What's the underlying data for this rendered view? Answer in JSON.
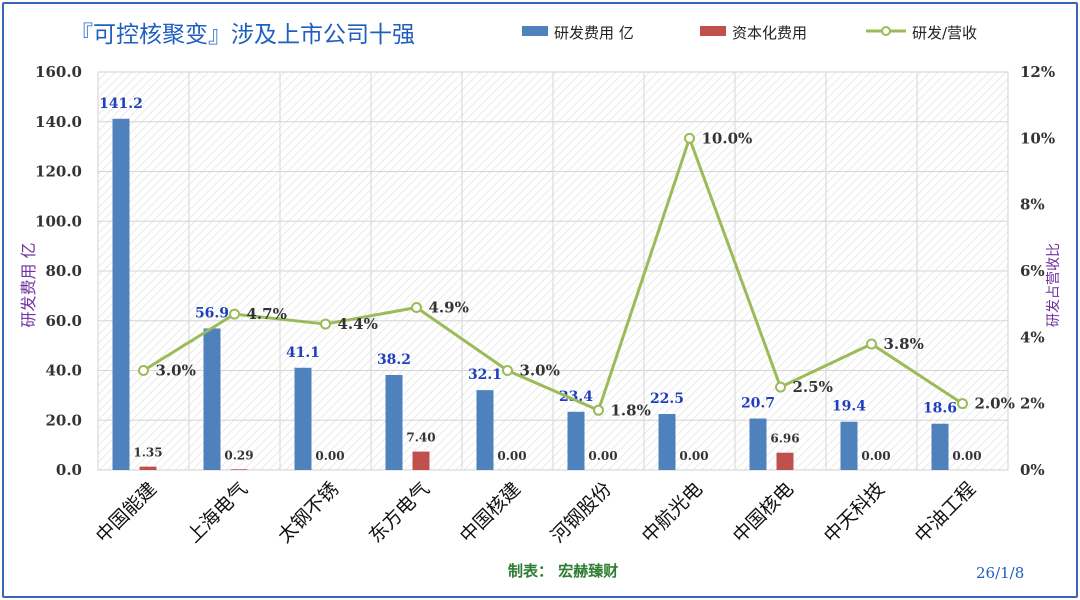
{
  "chart_data": {
    "type": "bar",
    "title": "『可控核聚变』涉及上市公司十强",
    "categories": [
      "中国能建",
      "上海电气",
      "太钢不锈",
      "东方电气",
      "中国核建",
      "河钢股份",
      "中航光电",
      "中国核电",
      "中天科技",
      "中油工程"
    ],
    "series": [
      {
        "name": "研发费用 亿",
        "kind": "bar",
        "axis": "left",
        "color": "#4f81bd",
        "values": [
          141.2,
          56.9,
          41.1,
          38.2,
          32.1,
          23.4,
          22.5,
          20.7,
          19.4,
          18.6
        ],
        "labels": [
          "141.2",
          "56.9",
          "41.1",
          "38.2",
          "32.1",
          "23.4",
          "22.5",
          "20.7",
          "19.4",
          "18.6"
        ]
      },
      {
        "name": "资本化费用",
        "kind": "bar",
        "axis": "left",
        "color": "#c0504d",
        "values": [
          1.35,
          0.29,
          0.0,
          7.4,
          0.0,
          0.0,
          0.0,
          6.96,
          0.0,
          0.0
        ],
        "labels": [
          "1.35",
          "0.29",
          "0.00",
          "7.40",
          "0.00",
          "0.00",
          "0.00",
          "6.96",
          "0.00",
          "0.00"
        ]
      },
      {
        "name": "研发/营收",
        "kind": "line",
        "axis": "right",
        "color": "#9bbb59",
        "values": [
          3.0,
          4.7,
          4.4,
          4.9,
          3.0,
          1.8,
          10.0,
          2.5,
          3.8,
          2.0
        ],
        "labels": [
          "3.0%",
          "4.7%",
          "4.4%",
          "4.9%",
          "3.0%",
          "1.8%",
          "10.0%",
          "2.5%",
          "3.8%",
          "2.0%"
        ]
      }
    ],
    "ylabel": "研发费用 亿",
    "y2label": "研发占营收比",
    "ylim": [
      0,
      160
    ],
    "y2lim": [
      0,
      12
    ],
    "yticks": [
      "0.0",
      "20.0",
      "40.0",
      "60.0",
      "80.0",
      "100.0",
      "120.0",
      "140.0",
      "160.0"
    ],
    "y2ticks": [
      "0%",
      "2%",
      "4%",
      "6%",
      "8%",
      "10%",
      "12%"
    ],
    "legend_position": "top-right",
    "grid": true
  },
  "footer": {
    "credit": "制表：  宏赫臻财",
    "date": "26/1/8"
  },
  "colors": {
    "title": "#1f5fbf",
    "bar_label": "#1f3fbf",
    "axis_title": "#7030a0",
    "footer": "#2e7d32",
    "date": "#1f5fbf",
    "frame": "#3a66b8"
  }
}
